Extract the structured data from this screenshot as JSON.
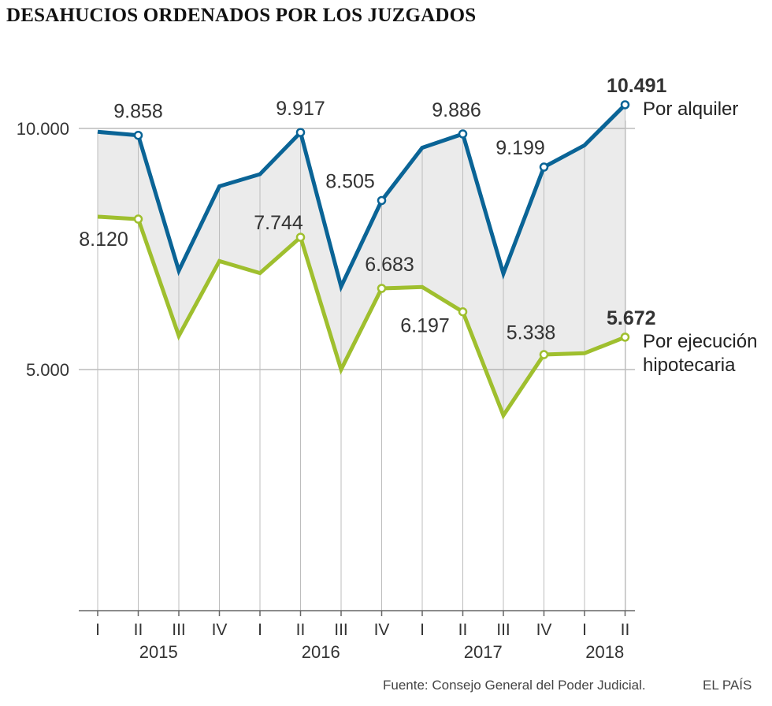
{
  "title": "DESAHUCIOS ORDENADOS POR LOS JUZGADOS",
  "footer": {
    "source": "Fuente: Consejo General del Poder Judicial.",
    "brand": "EL PAÍS"
  },
  "chart_data": {
    "type": "line",
    "title": "DESAHUCIOS ORDENADOS POR LOS JUZGADOS",
    "xlabel": "",
    "ylabel": "",
    "ylim": [
      0,
      11000
    ],
    "yticks": [
      {
        "value": 5000,
        "label": "5.000"
      },
      {
        "value": 10000,
        "label": "10.000"
      }
    ],
    "grid": true,
    "x": [
      "I",
      "II",
      "III",
      "IV",
      "I",
      "II",
      "III",
      "IV",
      "I",
      "II",
      "III",
      "IV",
      "I",
      "II"
    ],
    "years": [
      {
        "label": "2015",
        "from": 0,
        "to": 3
      },
      {
        "label": "2016",
        "from": 4,
        "to": 7
      },
      {
        "label": "2017",
        "from": 8,
        "to": 11
      },
      {
        "label": "2018",
        "from": 12,
        "to": 13
      }
    ],
    "fill_between": {
      "from": "Por alquiler",
      "to": "Por ejecución hipotecaria",
      "color": "#ebebeb"
    },
    "series": [
      {
        "name": "Por alquiler",
        "label_lines": [
          "Por alquiler"
        ],
        "color": "#0a6496",
        "values": [
          9930,
          9858,
          7050,
          8800,
          9050,
          9917,
          6720,
          8505,
          9600,
          9886,
          6990,
          9199,
          9650,
          10491
        ],
        "markers": [
          1,
          5,
          7,
          9,
          11,
          13
        ],
        "labels": [
          {
            "index": 1,
            "text": "9.858",
            "dx": 0,
            "dy": -22,
            "anchor": "middle"
          },
          {
            "index": 5,
            "text": "9.917",
            "dx": 0,
            "dy": -22,
            "anchor": "middle"
          },
          {
            "index": 7,
            "text": "8.505",
            "dx": -40,
            "dy": -16,
            "anchor": "middle"
          },
          {
            "index": 9,
            "text": "9.886",
            "dx": -8,
            "dy": -22,
            "anchor": "middle"
          },
          {
            "index": 11,
            "text": "9.199",
            "dx": -30,
            "dy": -16,
            "anchor": "middle"
          }
        ],
        "end_label": "10.491"
      },
      {
        "name": "Por ejecución hipotecaria",
        "label_lines": [
          "Por ejecución",
          "hipotecaria"
        ],
        "color": "#9fbf2e",
        "values": [
          8170,
          8120,
          5700,
          7250,
          7000,
          7744,
          5000,
          6683,
          6710,
          6197,
          4050,
          5310,
          5338,
          5672
        ],
        "markers": [
          1,
          5,
          7,
          9,
          11,
          13
        ],
        "labels": [
          {
            "index": 1,
            "text": "8.120",
            "dx": -44,
            "dy": 34,
            "anchor": "middle"
          },
          {
            "index": 5,
            "text": "7.744",
            "dx": -28,
            "dy": -10,
            "anchor": "middle"
          },
          {
            "index": 7,
            "text": "6.683",
            "dx": 10,
            "dy": -22,
            "anchor": "middle"
          },
          {
            "index": 9,
            "text": "6.197",
            "dx": -48,
            "dy": 26,
            "anchor": "middle"
          },
          {
            "index": 12,
            "text": "5.338",
            "dx": -68,
            "dy": -18,
            "anchor": "middle"
          }
        ],
        "end_label": "5.672"
      }
    ]
  }
}
